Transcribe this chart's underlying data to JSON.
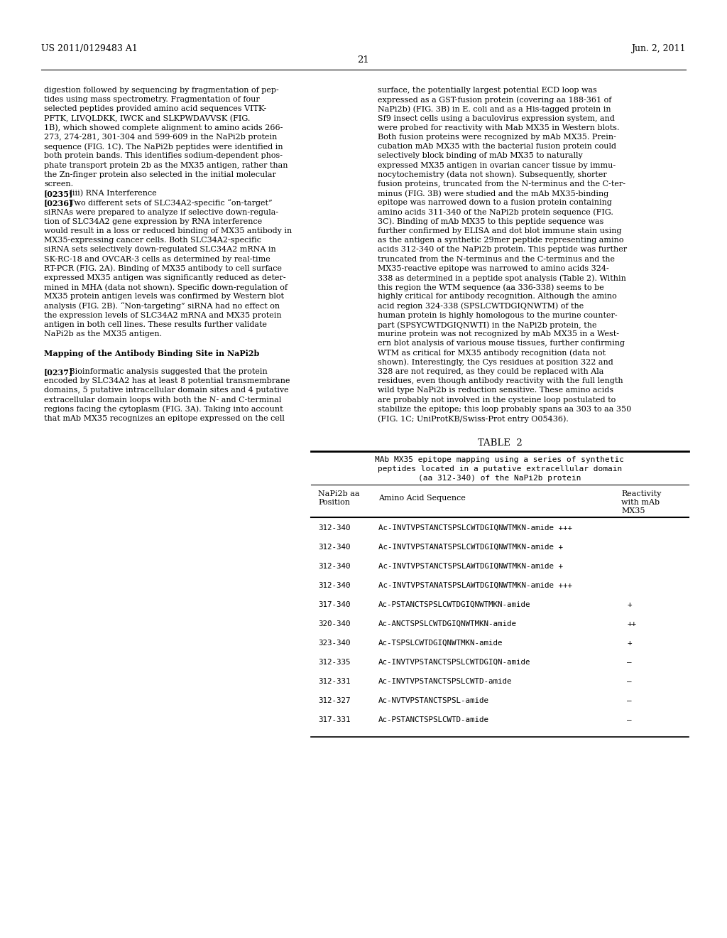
{
  "patent_number": "US 2011/0129483 A1",
  "date": "Jun. 2, 2011",
  "page_number": "21",
  "background_color": "#ffffff",
  "text_color": "#000000",
  "left_column_text": [
    {
      "text": "digestion followed by sequencing by fragmentation of pep-",
      "bold": false,
      "indent": false
    },
    {
      "text": "tides using mass spectrometry. Fragmentation of four",
      "bold": false,
      "indent": false
    },
    {
      "text": "selected peptides provided amino acid sequences VITK-",
      "bold": false,
      "indent": false
    },
    {
      "text": "PFTK, LIVQLDKK, IWCK and SLKPWDAVVSK (FIG.",
      "bold": false,
      "indent": false
    },
    {
      "text": "1B), which showed complete alignment to amino acids 266-",
      "bold": false,
      "indent": false
    },
    {
      "text": "273, 274-281, 301-304 and 599-609 in the NaPi2b protein",
      "bold": false,
      "indent": false
    },
    {
      "text": "sequence (FIG. 1C). The NaPi2b peptides were identified in",
      "bold": false,
      "indent": false
    },
    {
      "text": "both protein bands. This identifies sodium-dependent phos-",
      "bold": false,
      "indent": false
    },
    {
      "text": "phate transport protein 2b as the MX35 antigen, rather than",
      "bold": false,
      "indent": false
    },
    {
      "text": "the Zn-finger protein also selected in the initial molecular",
      "bold": false,
      "indent": false
    },
    {
      "text": "screen.",
      "bold": false,
      "indent": false
    },
    {
      "text": "[0235]   (iii) RNA Interference",
      "bold": true,
      "marker": "[0235]",
      "rest": "   (iii) RNA Interference"
    },
    {
      "text": "[0236]   Two different sets of SLC34A2-specific “on-target”",
      "bold": true,
      "marker": "[0236]",
      "rest": "   Two different sets of SLC34A2-specific “on-target”"
    },
    {
      "text": "siRNAs were prepared to analyze if selective down-regula-",
      "bold": false,
      "indent": false
    },
    {
      "text": "tion of SLC34A2 gene expression by RNA interference",
      "bold": false,
      "indent": false
    },
    {
      "text": "would result in a loss or reduced binding of MX35 antibody in",
      "bold": false,
      "indent": false
    },
    {
      "text": "MX35-expressing cancer cells. Both SLC34A2-specific",
      "bold": false,
      "indent": false
    },
    {
      "text": "siRNA sets selectively down-regulated SLC34A2 mRNA in",
      "bold": false,
      "indent": false
    },
    {
      "text": "SK-RC-18 and OVCAR-3 cells as determined by real-time",
      "bold": false,
      "indent": false
    },
    {
      "text": "RT-PCR (FIG. 2A). Binding of MX35 antibody to cell surface",
      "bold": false,
      "indent": false
    },
    {
      "text": "expressed MX35 antigen was significantly reduced as deter-",
      "bold": false,
      "indent": false
    },
    {
      "text": "mined in MHA (data not shown). Specific down-regulation of",
      "bold": false,
      "indent": false
    },
    {
      "text": "MX35 protein antigen levels was confirmed by Western blot",
      "bold": false,
      "indent": false
    },
    {
      "text": "analysis (FIG. 2B). “Non-targeting” siRNA had no effect on",
      "bold": false,
      "indent": false
    },
    {
      "text": "the expression levels of SLC34A2 mRNA and MX35 protein",
      "bold": false,
      "indent": false
    },
    {
      "text": "antigen in both cell lines. These results further validate",
      "bold": false,
      "indent": false
    },
    {
      "text": "NaPi2b as the MX35 antigen.",
      "bold": false,
      "indent": false
    },
    {
      "text": "",
      "bold": false,
      "indent": false
    },
    {
      "text": "Mapping of the Antibody Binding Site in NaPi2b",
      "bold": true,
      "marker": null,
      "rest": null
    },
    {
      "text": "",
      "bold": false,
      "indent": false
    },
    {
      "text": "[0237]   Bioinformatic analysis suggested that the protein",
      "bold": true,
      "marker": "[0237]",
      "rest": "   Bioinformatic analysis suggested that the protein"
    },
    {
      "text": "encoded by SLC34A2 has at least 8 potential transmembrane",
      "bold": false,
      "indent": false
    },
    {
      "text": "domains, 5 putative intracellular domain sites and 4 putative",
      "bold": false,
      "indent": false
    },
    {
      "text": "extracellular domain loops with both the N- and C-terminal",
      "bold": false,
      "indent": false
    },
    {
      "text": "regions facing the cytoplasm (FIG. 3A). Taking into account",
      "bold": false,
      "indent": false
    },
    {
      "text": "that mAb MX35 recognizes an epitope expressed on the cell",
      "bold": false,
      "indent": false
    }
  ],
  "right_column_text": [
    "surface, the potentially largest potential ECD loop was",
    "expressed as a GST-fusion protein (covering aa 188-361 of",
    "NaPi2b) (FIG. 3B) in E. coli and as a His-tagged protein in",
    "Sf9 insect cells using a baculovirus expression system, and",
    "were probed for reactivity with Mab MX35 in Western blots.",
    "Both fusion proteins were recognized by mAb MX35. Prein-",
    "cubation mAb MX35 with the bacterial fusion protein could",
    "selectively block binding of mAb MX35 to naturally",
    "expressed MX35 antigen in ovarian cancer tissue by immu-",
    "nocytochemistry (data not shown). Subsequently, shorter",
    "fusion proteins, truncated from the N-terminus and the C-ter-",
    "minus (FIG. 3B) were studied and the mAb MX35-binding",
    "epitope was narrowed down to a fusion protein containing",
    "amino acids 311-340 of the NaPi2b protein sequence (FIG.",
    "3C). Binding of mAb MX35 to this peptide sequence was",
    "further confirmed by ELISA and dot blot immune stain using",
    "as the antigen a synthetic 29mer peptide representing amino",
    "acids 312-340 of the NaPi2b protein. This peptide was further",
    "truncated from the N-terminus and the C-terminus and the",
    "MX35-reactive epitope was narrowed to amino acids 324-",
    "338 as determined in a peptide spot analysis (Table 2). Within",
    "this region the WTM sequence (aa 336-338) seems to be",
    "highly critical for antibody recognition. Although the amino",
    "acid region 324-338 (SPSLCWTDGIQNWTM) of the",
    "human protein is highly homologous to the murine counter-",
    "part (SPSYCWTDGIQNWTI) in the NaPi2b protein, the",
    "murine protein was not recognized by mAb MX35 in a West-",
    "ern blot analysis of various mouse tissues, further confirming",
    "WTM as critical for MX35 antibody recognition (data not",
    "shown). Interestingly, the Cys residues at position 322 and",
    "328 are not required, as they could be replaced with Ala",
    "residues, even though antibody reactivity with the full length",
    "wild type NaPi2b is reduction sensitive. These amino acids",
    "are probably not involved in the cysteine loop postulated to",
    "stabilize the epitope; this loop probably spans aa 303 to aa 350",
    "(FIG. 1C; UniProtKB/Swiss-Prot entry O05436)."
  ],
  "table_title": "TABLE  2",
  "table_header_line1": "MAb MX35 epitope mapping using a series of synthetic",
  "table_header_line2": "peptides located in a putative extracellular domain",
  "table_header_line3": "(aa 312-340) of the NaPi2b protein",
  "table_rows": [
    [
      "312-340",
      "Ac-INVTVPSTANCTSPSLCWTDGIQNWTMKN-amide +++",
      ""
    ],
    [
      "312-340",
      "Ac-INVTVPSTANATSPSLCWTDGIQNWTMKN-amide +",
      ""
    ],
    [
      "312-340",
      "Ac-INVTVPSTANCTSPSLAWTDGIQNWTMKN-amide +",
      ""
    ],
    [
      "312-340",
      "Ac-INVTVPSTANATSPSLAWTDGIQNWTMKN-amide +++",
      ""
    ],
    [
      "317-340",
      "Ac-PSTANCTSPSLCWTDGIQNWTMKN-amide",
      "+"
    ],
    [
      "320-340",
      "Ac-ANCTSPSLCWTDGIQNWTMKN-amide",
      "++"
    ],
    [
      "323-340",
      "Ac-TSPSLCWTDGIQNWTMKN-amide",
      "+"
    ],
    [
      "312-335",
      "Ac-INVTVPSTANCTSPSLCWTDGIQN-amide",
      "–"
    ],
    [
      "312-331",
      "Ac-INVTVPSTANCTSPSLCWTD-amide",
      "–"
    ],
    [
      "312-327",
      "Ac-NVTVPSTANCTSPSL-amide",
      "–"
    ],
    [
      "317-331",
      "Ac-PSTANCTSPSLCWTD-amide",
      "–"
    ]
  ]
}
